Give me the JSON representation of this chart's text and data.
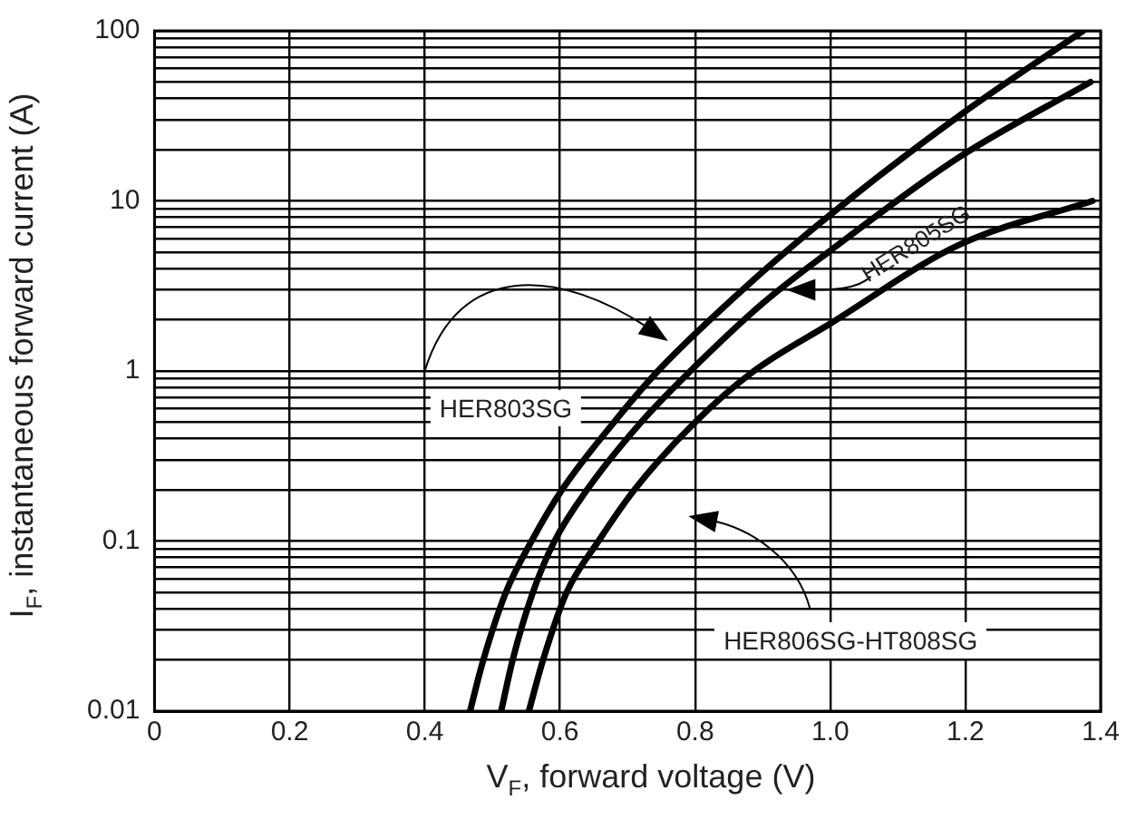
{
  "chart_data": {
    "type": "line",
    "xlabel": "V$_{F}$, forward voltage (V)",
    "ylabel": "I$_{F}$, instantaneous forward current (A)",
    "log": "y",
    "grid": true,
    "legend": false,
    "marker": "none",
    "line_style": "solid",
    "xlim": [
      0,
      1.4
    ],
    "xticks": [
      0,
      0.2,
      0.4,
      0.6,
      0.8,
      {
        "value": 1,
        "label": "1.0"
      },
      1.2,
      1.4
    ],
    "ylim": [
      0.01,
      100
    ],
    "yticks": [
      0.01,
      {
        "value": 0.02,
        "label": null
      },
      {
        "value": 0.03,
        "label": null
      },
      {
        "value": 0.04,
        "label": null
      },
      {
        "value": 0.05,
        "label": null
      },
      {
        "value": 0.06,
        "label": null
      },
      {
        "value": 0.07,
        "label": null
      },
      {
        "value": 0.08,
        "label": null
      },
      {
        "value": 0.09,
        "label": null
      },
      0.1,
      {
        "value": 0.2,
        "label": null
      },
      {
        "value": 0.3,
        "label": null
      },
      {
        "value": 0.4,
        "label": null
      },
      {
        "value": 0.5,
        "label": null
      },
      {
        "value": 0.6,
        "label": null
      },
      {
        "value": 0.7,
        "label": null
      },
      {
        "value": 0.8,
        "label": null
      },
      {
        "value": 0.9,
        "label": null
      },
      1,
      {
        "value": 2,
        "label": null
      },
      {
        "value": 3,
        "label": null
      },
      {
        "value": 4,
        "label": null
      },
      {
        "value": 5,
        "label": null
      },
      {
        "value": 6,
        "label": null
      },
      {
        "value": 7,
        "label": null
      },
      {
        "value": 8,
        "label": null
      },
      {
        "value": 9,
        "label": null
      },
      10,
      {
        "value": 20,
        "label": null
      },
      {
        "value": 30,
        "label": null
      },
      {
        "value": 40,
        "label": null
      },
      {
        "value": 50,
        "label": null
      },
      {
        "value": 60,
        "label": null
      },
      {
        "value": 70,
        "label": null
      },
      {
        "value": 80,
        "label": null
      },
      {
        "value": 90,
        "label": null
      },
      100
    ],
    "annotations": [
      "HER803SG",
      "HER805SG",
      "HER806SG-HT808SG"
    ],
    "series": [
      {
        "color": "#000000",
        "x": [
          0.467,
          0.485,
          0.52,
          0.558,
          0.603,
          0.68,
          0.745,
          0.87,
          1.0,
          1.19,
          1.374
        ],
        "values": [
          0.01,
          0.019,
          0.05,
          0.1,
          0.2,
          0.5,
          1,
          3,
          8.3,
          31.5,
          100
        ]
      },
      {
        "color": "#000000",
        "x": [
          0.513,
          0.53,
          0.56,
          0.592,
          0.64,
          0.72,
          0.793,
          0.9,
          1.0,
          1.19,
          1.385
        ],
        "values": [
          0.01,
          0.02,
          0.05,
          0.1,
          0.2,
          0.5,
          1,
          2.5,
          5.1,
          18,
          50
        ]
      },
      {
        "color": "#000000",
        "x": [
          0.554,
          0.575,
          0.61,
          0.657,
          0.71,
          0.8,
          0.887,
          1.0,
          1.19,
          1.388
        ],
        "values": [
          0.01,
          0.02,
          0.05,
          0.1,
          0.2,
          0.5,
          1,
          1.9,
          5.5,
          10
        ]
      }
    ]
  }
}
